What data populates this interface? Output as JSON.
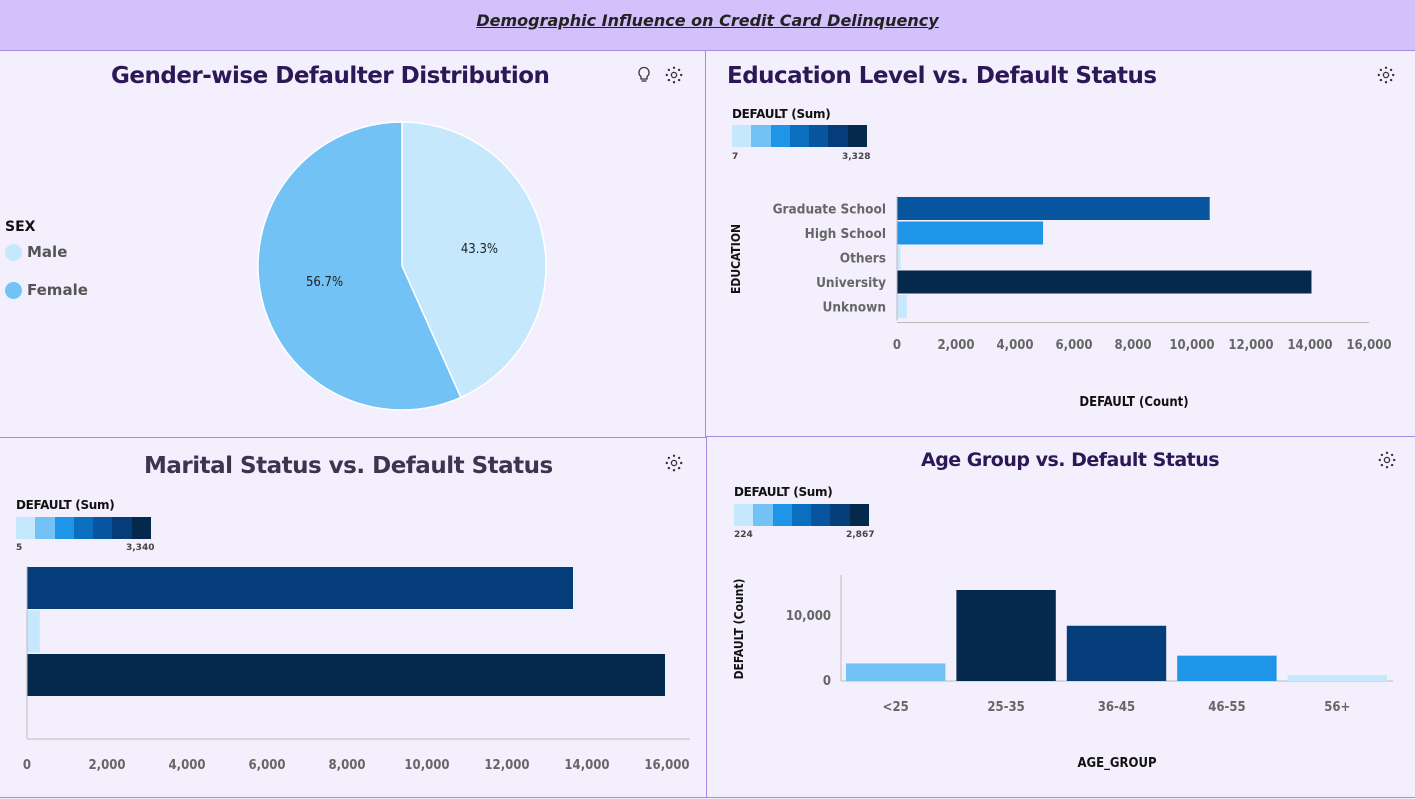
{
  "page_title": "Demographic Influence on Credit Card Delinquency",
  "colors": {
    "ramp": [
      "#c5e8fd",
      "#72c2f6",
      "#1f95e8",
      "#0b6fc0",
      "#07559e",
      "#053d7a",
      "#04294d"
    ]
  },
  "icons": {
    "insight": "lightbulb-icon",
    "settings": "settings-icon"
  },
  "chart_data": [
    {
      "type": "pie",
      "title": "Gender-wise Defaulter Distribution",
      "legend_title": "SEX",
      "legend_position": "left",
      "slices": [
        {
          "label": "Male",
          "value": 43.3,
          "display": "43.3%",
          "color": "#c5e8fd"
        },
        {
          "label": "Female",
          "value": 56.7,
          "display": "56.7%",
          "color": "#72c2f6"
        }
      ]
    },
    {
      "type": "bar",
      "orientation": "horizontal",
      "title": "Education Level vs. Default Status",
      "xlabel": "DEFAULT (Count)",
      "ylabel": "EDUCATION",
      "categories": [
        "Graduate School",
        "High School",
        "Others",
        "University",
        "Unknown"
      ],
      "values": [
        10600,
        4950,
        120,
        14050,
        330
      ],
      "color_values": [
        2036,
        1237,
        7,
        3328,
        35
      ],
      "xlim": [
        0,
        16000
      ],
      "xticks": [
        "0",
        "2,000",
        "4,000",
        "6,000",
        "8,000",
        "10,000",
        "12,000",
        "14,000",
        "16,000"
      ],
      "color_legend": {
        "title": "DEFAULT (Sum)",
        "min": "7",
        "max": "3,328"
      }
    },
    {
      "type": "bar",
      "orientation": "horizontal",
      "title": "Marital Status vs. Default Status",
      "categories": [
        "",
        "",
        "",
        ""
      ],
      "values": [
        13650,
        320,
        15950,
        0
      ],
      "color_values": [
        2800,
        5,
        3340,
        0
      ],
      "xlim": [
        0,
        16000
      ],
      "xticks": [
        "0",
        "2,000",
        "4,000",
        "6,000",
        "8,000",
        "10,000",
        "12,000",
        "14,000",
        "16,000"
      ],
      "color_legend": {
        "title": "DEFAULT (Sum)",
        "min": "5",
        "max": "3,340"
      }
    },
    {
      "type": "bar",
      "orientation": "vertical",
      "title": "Age Group vs. Default Status",
      "xlabel": "AGE_GROUP",
      "ylabel": "DEFAULT (Count)",
      "categories": [
        "<25",
        "25-35",
        "36-45",
        "46-55",
        "56+"
      ],
      "values": [
        2700,
        14000,
        8500,
        3900,
        900
      ],
      "color_values": [
        660,
        2867,
        2270,
        1140,
        224
      ],
      "ylim": [
        0,
        16000
      ],
      "yticks": [
        {
          "value": 0,
          "label": "0"
        },
        {
          "value": 10000,
          "label": "10,000"
        }
      ],
      "color_legend": {
        "title": "DEFAULT (Sum)",
        "min": "224",
        "max": "2,867"
      }
    }
  ]
}
